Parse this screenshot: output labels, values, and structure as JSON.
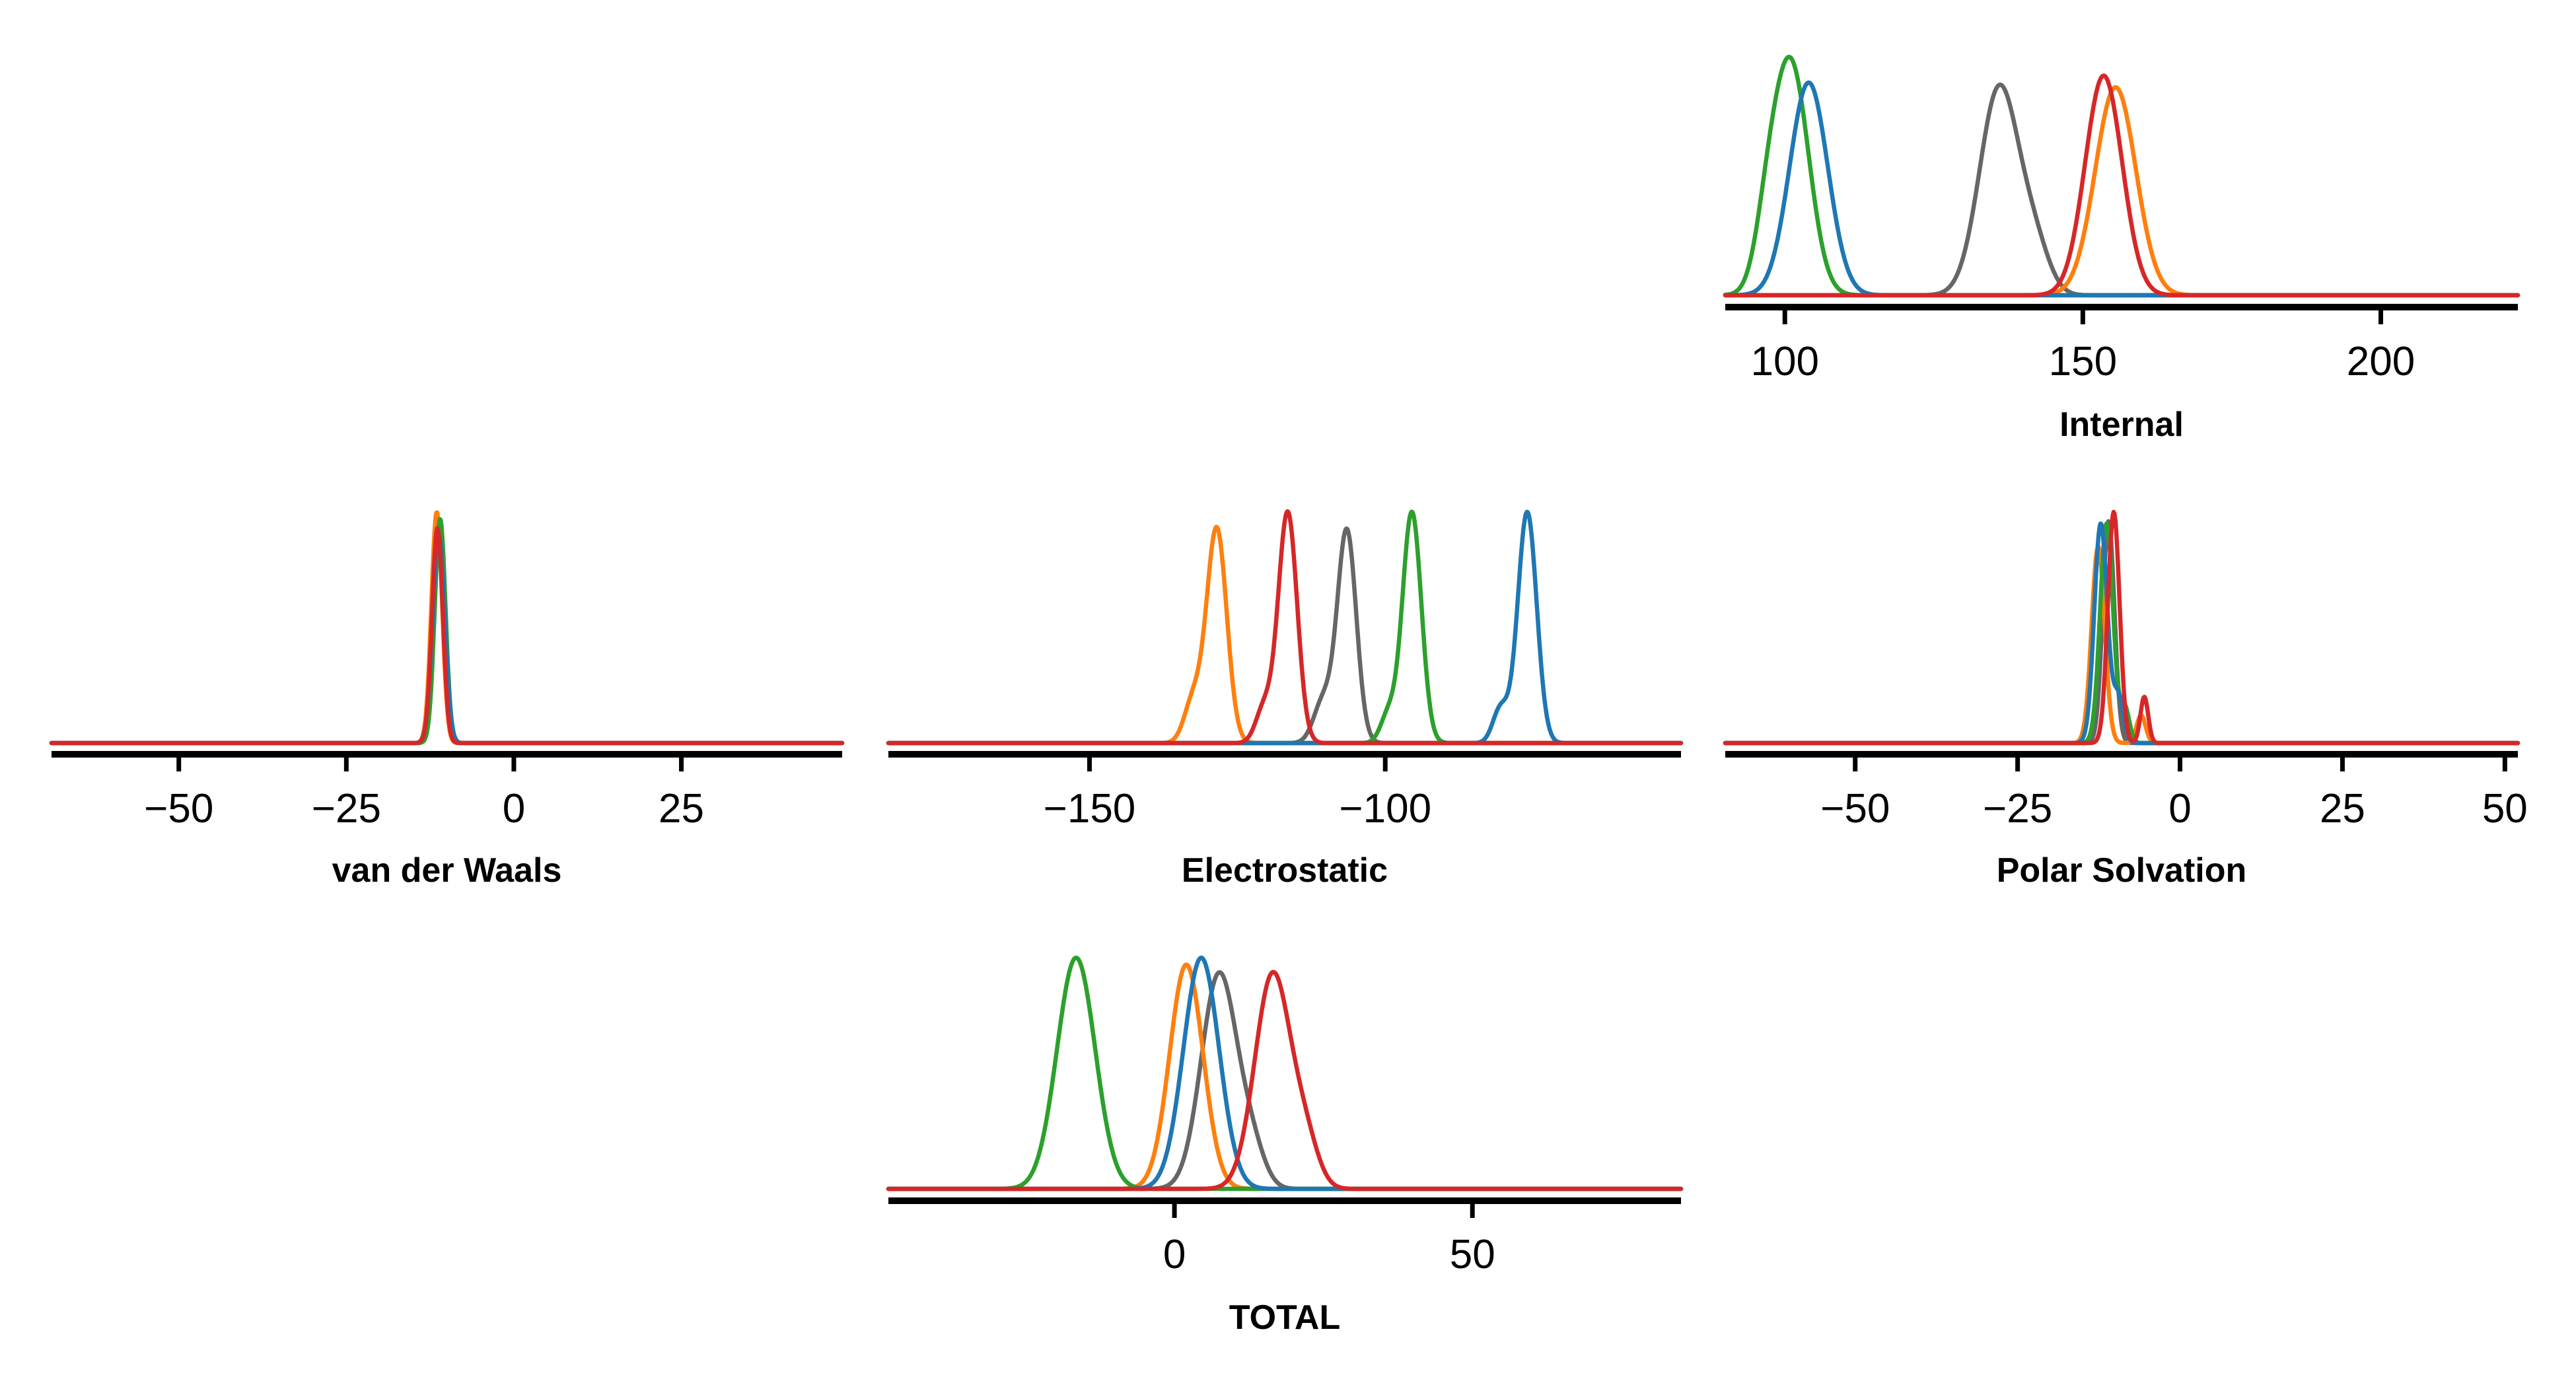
{
  "colors": {
    "blue": "#1f77b4",
    "orange": "#ff7f0e",
    "green": "#2ca02c",
    "gray": "#666666",
    "red": "#d62728"
  },
  "chart_data": [
    {
      "id": "internal",
      "type": "line",
      "xlabel": "Internal",
      "xlim": [
        90,
        223
      ],
      "ticks": [
        100,
        150,
        200
      ],
      "tick_labels": [
        "100",
        "150",
        "200"
      ],
      "grid": false,
      "legend": "none",
      "series": [
        {
          "color": "blue",
          "peaks": [
            {
              "mu": 104,
              "sigma": 3.2,
              "h": 0.92
            }
          ]
        },
        {
          "color": "green",
          "peaks": [
            {
              "mu": 101,
              "sigma": 3.0,
              "h": 1.0
            },
            {
              "mu": 97,
              "sigma": 2.0,
              "h": 0.2
            }
          ]
        },
        {
          "color": "gray",
          "peaks": [
            {
              "mu": 136,
              "sigma": 3.3,
              "h": 0.9
            },
            {
              "mu": 142,
              "sigma": 2.5,
              "h": 0.18
            }
          ]
        },
        {
          "color": "orange",
          "peaks": [
            {
              "mu": 155.5,
              "sigma": 3.4,
              "h": 0.9
            }
          ]
        },
        {
          "color": "red",
          "peaks": [
            {
              "mu": 153.5,
              "sigma": 3.1,
              "h": 0.95
            }
          ]
        }
      ]
    },
    {
      "id": "vdw",
      "type": "line",
      "xlabel": "van der Waals",
      "xlim": [
        -69,
        49
      ],
      "ticks": [
        -50,
        -25,
        0,
        25
      ],
      "tick_labels": [
        "−50",
        "−25",
        "0",
        "25"
      ],
      "grid": false,
      "legend": "none",
      "series": [
        {
          "color": "blue",
          "peaks": [
            {
              "mu": -11.2,
              "sigma": 0.9,
              "h": 0.9
            }
          ]
        },
        {
          "color": "orange",
          "peaks": [
            {
              "mu": -11.5,
              "sigma": 0.8,
              "h": 1.0
            }
          ]
        },
        {
          "color": "green",
          "peaks": [
            {
              "mu": -11.0,
              "sigma": 0.8,
              "h": 0.97
            }
          ]
        },
        {
          "color": "gray",
          "peaks": [
            {
              "mu": -11.3,
              "sigma": 0.85,
              "h": 0.95
            }
          ]
        },
        {
          "color": "red",
          "peaks": [
            {
              "mu": -11.4,
              "sigma": 0.8,
              "h": 0.93
            }
          ]
        }
      ]
    },
    {
      "id": "electrostatic",
      "type": "line",
      "xlabel": "Electrostatic",
      "xlim": [
        -184,
        -50
      ],
      "ticks": [
        -150,
        -100
      ],
      "tick_labels": [
        "−150",
        "−100"
      ],
      "grid": false,
      "legend": "none",
      "series": [
        {
          "color": "orange",
          "peaks": [
            {
              "mu": -128.5,
              "sigma": 1.7,
              "h": 0.93
            },
            {
              "mu": -132.5,
              "sigma": 1.5,
              "h": 0.18
            }
          ]
        },
        {
          "color": "red",
          "peaks": [
            {
              "mu": -116.5,
              "sigma": 1.6,
              "h": 1.0
            },
            {
              "mu": -120.5,
              "sigma": 1.4,
              "h": 0.15
            }
          ]
        },
        {
          "color": "gray",
          "peaks": [
            {
              "mu": -106.5,
              "sigma": 1.6,
              "h": 0.92
            },
            {
              "mu": -110.5,
              "sigma": 1.6,
              "h": 0.18
            }
          ]
        },
        {
          "color": "green",
          "peaks": [
            {
              "mu": -95.5,
              "sigma": 1.6,
              "h": 1.0
            },
            {
              "mu": -99.5,
              "sigma": 1.3,
              "h": 0.12
            }
          ]
        },
        {
          "color": "blue",
          "peaks": [
            {
              "mu": -76,
              "sigma": 1.6,
              "h": 1.0
            },
            {
              "mu": -80.5,
              "sigma": 1.3,
              "h": 0.15
            }
          ]
        }
      ]
    },
    {
      "id": "polar",
      "type": "line",
      "xlabel": "Polar Solvation",
      "xlim": [
        -70,
        52
      ],
      "ticks": [
        -50,
        -25,
        0,
        25,
        50
      ],
      "tick_labels": [
        "−50",
        "−25",
        "0",
        "25",
        "50"
      ],
      "grid": false,
      "legend": "none",
      "series": [
        {
          "color": "blue",
          "peaks": [
            {
              "mu": -12.2,
              "sigma": 1.0,
              "h": 0.95
            },
            {
              "mu": -9.5,
              "sigma": 0.8,
              "h": 0.2
            }
          ]
        },
        {
          "color": "orange",
          "peaks": [
            {
              "mu": -12.6,
              "sigma": 1.0,
              "h": 0.85
            },
            {
              "mu": -6,
              "sigma": 0.7,
              "h": 0.12
            }
          ]
        },
        {
          "color": "green",
          "peaks": [
            {
              "mu": -11.3,
              "sigma": 1.0,
              "h": 0.95
            },
            {
              "mu": -8.5,
              "sigma": 0.7,
              "h": 0.15
            }
          ]
        },
        {
          "color": "gray",
          "peaks": [
            {
              "mu": -11.0,
              "sigma": 0.9,
              "h": 0.96
            }
          ]
        },
        {
          "color": "red",
          "peaks": [
            {
              "mu": -10.2,
              "sigma": 0.9,
              "h": 1.0
            },
            {
              "mu": -5.5,
              "sigma": 0.6,
              "h": 0.2
            }
          ]
        }
      ]
    },
    {
      "id": "total",
      "type": "line",
      "xlabel": "TOTAL",
      "xlim": [
        -48,
        85
      ],
      "ticks": [
        0,
        50
      ],
      "tick_labels": [
        "0",
        "50"
      ],
      "grid": false,
      "legend": "none",
      "series": [
        {
          "color": "green",
          "peaks": [
            {
              "mu": -16.5,
              "sigma": 3.2,
              "h": 1.0
            }
          ]
        },
        {
          "color": "orange",
          "peaks": [
            {
              "mu": 2,
              "sigma": 2.8,
              "h": 0.97
            }
          ]
        },
        {
          "color": "blue",
          "peaks": [
            {
              "mu": 4.5,
              "sigma": 3.0,
              "h": 1.0
            }
          ]
        },
        {
          "color": "gray",
          "peaks": [
            {
              "mu": 7.5,
              "sigma": 3.0,
              "h": 0.93
            },
            {
              "mu": 13,
              "sigma": 2.2,
              "h": 0.15
            }
          ]
        },
        {
          "color": "red",
          "peaks": [
            {
              "mu": 16.5,
              "sigma": 3.0,
              "h": 0.93
            },
            {
              "mu": 22,
              "sigma": 2.2,
              "h": 0.18
            }
          ]
        }
      ]
    }
  ]
}
